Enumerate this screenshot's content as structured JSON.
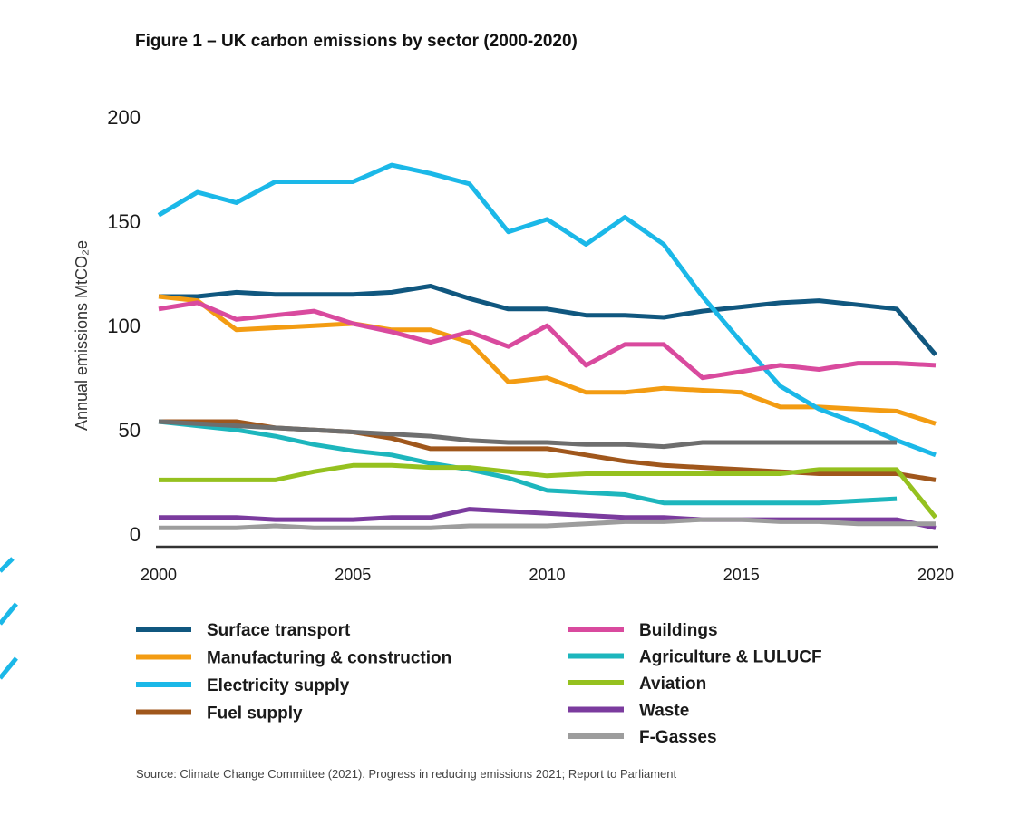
{
  "figure": {
    "title": "Figure 1 – UK carbon emissions by sector (2000-2020)",
    "source": "Source: Climate Change Committee (2021). Progress in reducing emissions 2021; Report to Parliament"
  },
  "chart_data": {
    "type": "line",
    "title": "Figure 1 – UK carbon emissions by sector (2000-2020)",
    "xlabel": "",
    "ylabel": "Annual emissions MtCO₂e",
    "xlim": [
      2000,
      2020
    ],
    "ylim": [
      0,
      200
    ],
    "x_ticks": [
      2000,
      2005,
      2010,
      2015,
      2020
    ],
    "y_ticks": [
      0,
      50,
      100,
      150,
      200
    ],
    "grid": false,
    "legend_position": "bottom",
    "series": [
      {
        "name": "Surface transport",
        "color": "#10577f",
        "points": [
          [
            2000,
            120
          ],
          [
            2001,
            120
          ],
          [
            2002,
            122
          ],
          [
            2003,
            121
          ],
          [
            2004,
            121
          ],
          [
            2005,
            121
          ],
          [
            2006,
            122
          ],
          [
            2007,
            125
          ],
          [
            2008,
            119
          ],
          [
            2009,
            114
          ],
          [
            2010,
            114
          ],
          [
            2011,
            111
          ],
          [
            2012,
            111
          ],
          [
            2013,
            110
          ],
          [
            2014,
            113
          ],
          [
            2015,
            115
          ],
          [
            2016,
            117
          ],
          [
            2017,
            118
          ],
          [
            2018,
            116
          ],
          [
            2019,
            114
          ],
          [
            2020,
            92
          ]
        ]
      },
      {
        "name": "Manufacturing & construction",
        "color": "#f39c12",
        "points": [
          [
            2000,
            120
          ],
          [
            2001,
            118
          ],
          [
            2002,
            104
          ],
          [
            2003,
            105
          ],
          [
            2004,
            106
          ],
          [
            2005,
            107
          ],
          [
            2006,
            104
          ],
          [
            2007,
            104
          ],
          [
            2008,
            98
          ],
          [
            2009,
            79
          ],
          [
            2010,
            81
          ],
          [
            2011,
            74
          ],
          [
            2012,
            74
          ],
          [
            2013,
            76
          ],
          [
            2014,
            75
          ],
          [
            2015,
            74
          ],
          [
            2016,
            67
          ],
          [
            2017,
            67
          ],
          [
            2018,
            66
          ],
          [
            2019,
            65
          ],
          [
            2020,
            59
          ]
        ]
      },
      {
        "name": "Electricity supply",
        "color": "#1bb8e8",
        "points": [
          [
            2000,
            159
          ],
          [
            2001,
            170
          ],
          [
            2002,
            165
          ],
          [
            2003,
            175
          ],
          [
            2004,
            175
          ],
          [
            2005,
            175
          ],
          [
            2006,
            183
          ],
          [
            2007,
            179
          ],
          [
            2008,
            174
          ],
          [
            2009,
            151
          ],
          [
            2010,
            157
          ],
          [
            2011,
            145
          ],
          [
            2012,
            158
          ],
          [
            2013,
            145
          ],
          [
            2014,
            120
          ],
          [
            2015,
            98
          ],
          [
            2016,
            77
          ],
          [
            2017,
            66
          ],
          [
            2018,
            59
          ],
          [
            2019,
            51
          ],
          [
            2020,
            44
          ]
        ]
      },
      {
        "name": "Fuel supply",
        "color": "#a0571c",
        "points": [
          [
            2000,
            60
          ],
          [
            2001,
            60
          ],
          [
            2002,
            60
          ],
          [
            2003,
            57
          ],
          [
            2004,
            56
          ],
          [
            2005,
            55
          ],
          [
            2006,
            52
          ],
          [
            2007,
            47
          ],
          [
            2008,
            47
          ],
          [
            2009,
            47
          ],
          [
            2010,
            47
          ],
          [
            2011,
            44
          ],
          [
            2012,
            41
          ],
          [
            2013,
            39
          ],
          [
            2014,
            38
          ],
          [
            2015,
            37
          ],
          [
            2016,
            36
          ],
          [
            2017,
            35
          ],
          [
            2018,
            35
          ],
          [
            2019,
            35
          ],
          [
            2020,
            32
          ]
        ]
      },
      {
        "name": "Buildings",
        "color": "#d94a9e",
        "points": [
          [
            2000,
            114
          ],
          [
            2001,
            117
          ],
          [
            2002,
            109
          ],
          [
            2003,
            111
          ],
          [
            2004,
            113
          ],
          [
            2005,
            107
          ],
          [
            2006,
            103
          ],
          [
            2007,
            98
          ],
          [
            2008,
            103
          ],
          [
            2009,
            96
          ],
          [
            2010,
            106
          ],
          [
            2011,
            87
          ],
          [
            2012,
            97
          ],
          [
            2013,
            97
          ],
          [
            2014,
            81
          ],
          [
            2015,
            84
          ],
          [
            2016,
            87
          ],
          [
            2017,
            85
          ],
          [
            2018,
            88
          ],
          [
            2019,
            88
          ],
          [
            2020,
            87
          ]
        ]
      },
      {
        "name": "Agriculture & LULUCF",
        "color": "#1db6bd",
        "points": [
          [
            2000,
            60
          ],
          [
            2001,
            58
          ],
          [
            2002,
            56
          ],
          [
            2003,
            53
          ],
          [
            2004,
            49
          ],
          [
            2005,
            46
          ],
          [
            2006,
            44
          ],
          [
            2007,
            40
          ],
          [
            2008,
            37
          ],
          [
            2009,
            33
          ],
          [
            2010,
            27
          ],
          [
            2011,
            26
          ],
          [
            2012,
            25
          ],
          [
            2013,
            21
          ],
          [
            2014,
            21
          ],
          [
            2015,
            21
          ],
          [
            2016,
            21
          ],
          [
            2017,
            21
          ],
          [
            2018,
            22
          ],
          [
            2019,
            23
          ]
        ]
      },
      {
        "name": "Aviation",
        "color": "#95c11f",
        "points": [
          [
            2000,
            32
          ],
          [
            2001,
            32
          ],
          [
            2002,
            32
          ],
          [
            2003,
            32
          ],
          [
            2004,
            36
          ],
          [
            2005,
            39
          ],
          [
            2006,
            39
          ],
          [
            2007,
            38
          ],
          [
            2008,
            38
          ],
          [
            2009,
            36
          ],
          [
            2010,
            34
          ],
          [
            2011,
            35
          ],
          [
            2012,
            35
          ],
          [
            2013,
            35
          ],
          [
            2014,
            35
          ],
          [
            2015,
            35
          ],
          [
            2016,
            35
          ],
          [
            2017,
            37
          ],
          [
            2018,
            37
          ],
          [
            2019,
            37
          ],
          [
            2020,
            14
          ]
        ]
      },
      {
        "name": "Waste",
        "color": "#7b3b9e",
        "points": [
          [
            2000,
            14
          ],
          [
            2001,
            14
          ],
          [
            2002,
            14
          ],
          [
            2003,
            13
          ],
          [
            2004,
            13
          ],
          [
            2005,
            13
          ],
          [
            2006,
            14
          ],
          [
            2007,
            14
          ],
          [
            2008,
            18
          ],
          [
            2009,
            17
          ],
          [
            2010,
            16
          ],
          [
            2011,
            15
          ],
          [
            2012,
            14
          ],
          [
            2013,
            14
          ],
          [
            2014,
            13
          ],
          [
            2015,
            13
          ],
          [
            2016,
            13
          ],
          [
            2017,
            13
          ],
          [
            2018,
            13
          ],
          [
            2019,
            13
          ],
          [
            2020,
            9
          ]
        ]
      },
      {
        "name": "F-Gasses",
        "color": "#9d9d9d",
        "points": [
          [
            2000,
            9
          ],
          [
            2001,
            9
          ],
          [
            2002,
            9
          ],
          [
            2003,
            10
          ],
          [
            2004,
            9
          ],
          [
            2005,
            9
          ],
          [
            2006,
            9
          ],
          [
            2007,
            9
          ],
          [
            2008,
            10
          ],
          [
            2009,
            10
          ],
          [
            2010,
            10
          ],
          [
            2011,
            11
          ],
          [
            2012,
            12
          ],
          [
            2013,
            12
          ],
          [
            2014,
            13
          ],
          [
            2015,
            13
          ],
          [
            2016,
            12
          ],
          [
            2017,
            12
          ],
          [
            2018,
            11
          ],
          [
            2019,
            11
          ],
          [
            2020,
            11
          ]
        ]
      },
      {
        "name": "Grey (unlabelled)",
        "color": "#6e6e6e",
        "legend": false,
        "points": [
          [
            2000,
            60
          ],
          [
            2001,
            59
          ],
          [
            2002,
            58
          ],
          [
            2003,
            57
          ],
          [
            2004,
            56
          ],
          [
            2005,
            55
          ],
          [
            2006,
            54
          ],
          [
            2007,
            53
          ],
          [
            2008,
            51
          ],
          [
            2009,
            50
          ],
          [
            2010,
            50
          ],
          [
            2011,
            49
          ],
          [
            2012,
            49
          ],
          [
            2013,
            48
          ],
          [
            2014,
            50
          ],
          [
            2015,
            50
          ],
          [
            2016,
            50
          ],
          [
            2017,
            50
          ],
          [
            2018,
            50
          ],
          [
            2019,
            50
          ]
        ]
      }
    ]
  }
}
